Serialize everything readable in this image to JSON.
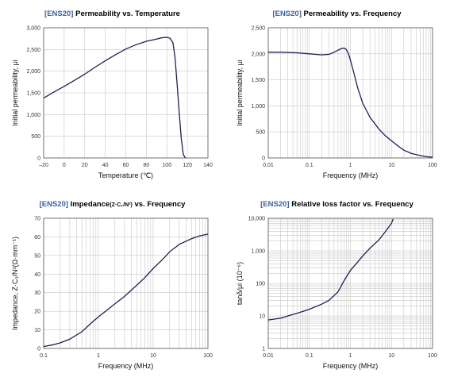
{
  "colors": {
    "accent": "#3a62a8",
    "curve": "#1e1f5c",
    "grid": "#c8c8c8"
  },
  "chart_data": [
    {
      "type": "line",
      "tag": "[ENS20]",
      "title": "Permeability vs. Temperature",
      "xlabel": "Temperature (℃)",
      "ylabel": "Initial permeability, μi",
      "xscale": "linear",
      "yscale": "linear",
      "xlim": [
        -20,
        140
      ],
      "ylim": [
        0,
        3000
      ],
      "xticks": [
        -20,
        0,
        20,
        40,
        60,
        80,
        100,
        120,
        140
      ],
      "xtick_labels": [
        "–20",
        "0",
        "20",
        "40",
        "60",
        "80",
        "100",
        "120",
        "140"
      ],
      "yticks": [
        0,
        500,
        1000,
        1500,
        2000,
        2500,
        3000
      ],
      "ytick_labels": [
        "0",
        "500",
        "1,000",
        "1,500",
        "2,000",
        "2,500",
        "3,000"
      ],
      "grid": "major",
      "x": [
        -20,
        -10,
        0,
        10,
        20,
        30,
        40,
        50,
        60,
        70,
        80,
        90,
        95,
        100,
        103,
        106,
        108,
        110,
        112,
        114,
        116,
        118
      ],
      "y": [
        1380,
        1520,
        1650,
        1790,
        1930,
        2090,
        2240,
        2380,
        2510,
        2610,
        2690,
        2740,
        2770,
        2780,
        2760,
        2650,
        2300,
        1700,
        1050,
        450,
        80,
        0
      ]
    },
    {
      "type": "line",
      "tag": "[ENS20]",
      "title": "Permeability vs. Frequency",
      "xlabel": "Frequency (MHz)",
      "ylabel": "Initial permeability, μi",
      "xscale": "log",
      "yscale": "linear",
      "xlim": [
        0.01,
        100
      ],
      "ylim": [
        0,
        2500
      ],
      "xticks": [
        0.01,
        0.1,
        1,
        10,
        100
      ],
      "xtick_labels": [
        "0.01",
        "0.1",
        "1",
        "10",
        "100"
      ],
      "yticks": [
        0,
        500,
        1000,
        1500,
        2000,
        2500
      ],
      "ytick_labels": [
        "0",
        "500",
        "1,000",
        "1,500",
        "2,000",
        "2,500"
      ],
      "grid": "log-minor",
      "x": [
        0.01,
        0.02,
        0.05,
        0.1,
        0.2,
        0.3,
        0.4,
        0.5,
        0.6,
        0.7,
        0.8,
        0.9,
        1,
        1.2,
        1.5,
        2,
        3,
        5,
        7,
        10,
        15,
        20,
        30,
        50,
        70,
        100
      ],
      "y": [
        2030,
        2030,
        2020,
        2000,
        1980,
        1990,
        2030,
        2070,
        2100,
        2110,
        2080,
        2000,
        1880,
        1650,
        1350,
        1050,
        780,
        550,
        430,
        330,
        220,
        150,
        90,
        45,
        25,
        15
      ]
    },
    {
      "type": "line",
      "tag": "[ENS20]",
      "title": "Impedance",
      "title_sub": "(Z·C₁/N²)",
      "title_tail": " vs. Frequency",
      "xlabel": "Frequency (MHz)",
      "ylabel": "Impedance, Z·C₁/N²(Ω·mm⁻¹)",
      "xscale": "log",
      "yscale": "linear",
      "xlim": [
        0.1,
        100
      ],
      "ylim": [
        0,
        70
      ],
      "xticks": [
        0.1,
        1,
        10,
        100
      ],
      "xtick_labels": [
        "0.1",
        "1",
        "10",
        "100"
      ],
      "yticks": [
        0,
        10,
        20,
        30,
        40,
        50,
        60,
        70
      ],
      "ytick_labels": [
        "0",
        "10",
        "20",
        "30",
        "40",
        "50",
        "60",
        "70"
      ],
      "grid": "log-minor",
      "x": [
        0.1,
        0.15,
        0.2,
        0.3,
        0.5,
        0.7,
        1,
        1.5,
        2,
        3,
        5,
        7,
        10,
        15,
        20,
        30,
        50,
        70,
        100
      ],
      "y": [
        1,
        2,
        3,
        5,
        9,
        13,
        17,
        21,
        24,
        28,
        34,
        38,
        43,
        48,
        52,
        56,
        59,
        60.5,
        61.5
      ]
    },
    {
      "type": "line",
      "tag": "[ENS20]",
      "title": "Relative loss factor vs. Frequency",
      "xlabel": "Frequency (MHz)",
      "ylabel": "tanδ/μi (10⁻⁶)",
      "xscale": "log",
      "yscale": "log",
      "xlim": [
        0.01,
        100
      ],
      "ylim": [
        1,
        10000
      ],
      "xticks": [
        0.01,
        0.1,
        1,
        10,
        100
      ],
      "xtick_labels": [
        "0.01",
        "0.1",
        "1",
        "10",
        "100"
      ],
      "yticks": [
        1,
        10,
        100,
        1000,
        10000
      ],
      "ytick_labels": [
        "1",
        "10",
        "100",
        "1,000",
        "10,000"
      ],
      "grid": "log-minor",
      "x": [
        0.01,
        0.02,
        0.03,
        0.05,
        0.1,
        0.2,
        0.3,
        0.5,
        0.7,
        1,
        1.5,
        2,
        3,
        5,
        7,
        10,
        11
      ],
      "y": [
        7.5,
        8.5,
        10,
        12,
        16,
        23,
        30,
        55,
        120,
        250,
        450,
        700,
        1200,
        2200,
        3800,
        7000,
        9500
      ]
    }
  ]
}
